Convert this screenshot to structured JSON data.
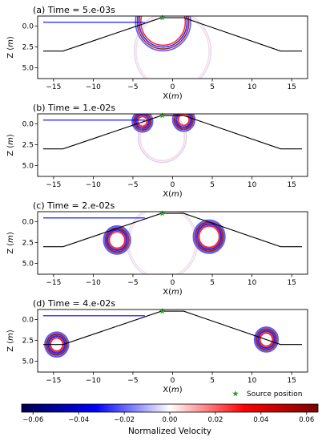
{
  "chart_data": [
    {
      "type": "heatmap",
      "title": "(a) Time = 5.e-03s",
      "time_s": 0.005,
      "xlabel": "X",
      "xlabel_unit": "m",
      "ylabel": "Z",
      "ylabel_unit": "m",
      "xlim": [
        -17,
        17
      ],
      "ylim": [
        6.3,
        -1.2
      ],
      "xticks": [
        -15,
        -10,
        -5,
        0,
        5,
        10,
        15
      ],
      "yticks": [
        0.0,
        2.5,
        5.0
      ],
      "tick_labels_x": [
        "−15",
        "−10",
        "−5",
        "0",
        "5",
        "10",
        "15"
      ],
      "tick_labels_y": [
        "0.0",
        "2.5",
        "5.0"
      ],
      "show_xlabel": true
    },
    {
      "type": "heatmap",
      "title": "(b) Time = 1.e-02s",
      "time_s": 0.01,
      "xlabel": "X",
      "xlabel_unit": "m",
      "ylabel": "Z",
      "ylabel_unit": "m",
      "xlim": [
        -17,
        17
      ],
      "ylim": [
        6.3,
        -1.2
      ],
      "xticks": [
        -15,
        -10,
        -5,
        0,
        5,
        10,
        15
      ],
      "yticks": [
        0.0,
        2.5,
        5.0
      ],
      "tick_labels_x": [
        "−15",
        "−10",
        "−5",
        "0",
        "5",
        "10",
        "15"
      ],
      "tick_labels_y": [
        "0.0",
        "2.5",
        "5.0"
      ],
      "show_xlabel": true
    },
    {
      "type": "heatmap",
      "title": "(c) Time = 2.e-02s",
      "time_s": 0.02,
      "xlabel": "X",
      "xlabel_unit": "m",
      "ylabel": "Z",
      "ylabel_unit": "m",
      "xlim": [
        -17,
        17
      ],
      "ylim": [
        6.3,
        -1.2
      ],
      "xticks": [
        -15,
        -10,
        -5,
        0,
        5,
        10,
        15
      ],
      "yticks": [
        0.0,
        2.5,
        5.0
      ],
      "tick_labels_x": [
        "−15",
        "−10",
        "−5",
        "0",
        "5",
        "10",
        "15"
      ],
      "tick_labels_y": [
        "0.0",
        "2.5",
        "5.0"
      ],
      "show_xlabel": true
    },
    {
      "type": "heatmap",
      "title": "(d) Time = 4.e-02s",
      "time_s": 0.04,
      "xlabel": "X",
      "xlabel_unit": "m",
      "ylabel": "Z",
      "ylabel_unit": "m",
      "xlim": [
        -17,
        17
      ],
      "ylim": [
        6.3,
        -1.2
      ],
      "xticks": [
        -15,
        -10,
        -5,
        0,
        5,
        10,
        15
      ],
      "yticks": [
        0.0,
        2.5,
        5.0
      ],
      "tick_labels_x": [
        "−15",
        "−10",
        "−5",
        "0",
        "5",
        "10",
        "15"
      ],
      "tick_labels_y": [
        "0.0",
        "2.5",
        "5.0"
      ],
      "show_xlabel": true
    }
  ],
  "geometry": {
    "outline": {
      "x": [
        -16.3,
        -13.8,
        -1.4,
        1.4,
        13.6,
        16.3
      ],
      "z": [
        3.0,
        3.0,
        -1.0,
        -1.0,
        3.0,
        3.0
      ],
      "color": "#000000"
    },
    "water_surface": {
      "x": [
        -16.3,
        -3.5
      ],
      "z": [
        -0.45,
        -0.45
      ],
      "color": "#0000ff"
    }
  },
  "source": {
    "x": -1.3,
    "z": -1.0,
    "label": "Source position",
    "color": "#2ca02c",
    "marker": "star"
  },
  "colorbar": {
    "label": "Normalized Velocity",
    "min": -0.065,
    "max": 0.065,
    "ticks": [
      -0.06,
      -0.04,
      -0.02,
      0.0,
      0.02,
      0.04,
      0.06
    ],
    "tick_labels": [
      "−0.06",
      "−0.04",
      "−0.02",
      "0.00",
      "0.02",
      "0.04",
      "0.06"
    ],
    "colormap": "seismic",
    "colors": [
      "#00004c",
      "#0000ff",
      "#ffffff",
      "#ff0000",
      "#7f0000"
    ]
  },
  "wavefronts": [
    [
      {
        "x": -1.2,
        "z": -0.5,
        "radius": 2.8,
        "phase": 0,
        "strength": 1.0,
        "kind": "ring"
      },
      {
        "x": 0.0,
        "z": 3.0,
        "radius": 4.6,
        "phase": 1,
        "strength": 0.5,
        "kind": "ring"
      }
    ],
    [
      {
        "x": -3.8,
        "z": -0.3,
        "radius": 0.6,
        "phase": 0,
        "strength": 1.0,
        "kind": "arc"
      },
      {
        "x": 1.4,
        "z": -0.5,
        "radius": 0.7,
        "phase": 0,
        "strength": 1.0,
        "kind": "arc"
      },
      {
        "x": -1.3,
        "z": 1.6,
        "radius": 2.8,
        "phase": 1,
        "strength": 0.6,
        "kind": "ring"
      }
    ],
    [
      {
        "x": -7.0,
        "z": 2.2,
        "radius": 1.0,
        "phase": 0,
        "strength": 1.0,
        "kind": "arc"
      },
      {
        "x": 4.6,
        "z": 1.8,
        "radius": 1.3,
        "phase": 0,
        "strength": 1.0,
        "kind": "arc"
      },
      {
        "x": -1.3,
        "z": 2.5,
        "radius": 4.2,
        "phase": 1,
        "strength": 0.45,
        "kind": "ring"
      }
    ],
    [
      {
        "x": -14.6,
        "z": 3.0,
        "radius": 0.8,
        "phase": 0,
        "strength": 1.0,
        "kind": "arc"
      },
      {
        "x": 11.8,
        "z": 2.4,
        "radius": 0.8,
        "phase": 0,
        "strength": 1.0,
        "kind": "arc"
      }
    ]
  ]
}
